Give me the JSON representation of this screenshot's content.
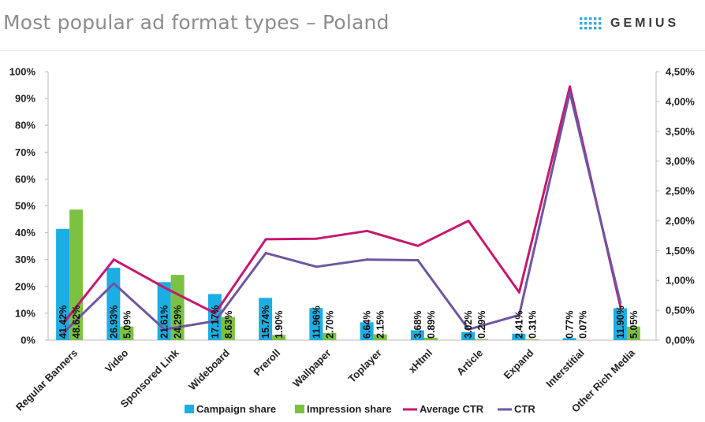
{
  "header": {
    "title": "Most popular ad format types – Poland",
    "logo_text": "GEMIUS"
  },
  "colors": {
    "campaign": "#1aaee3",
    "impression": "#7cc242",
    "avg_ctr": "#c6186f",
    "ctr": "#6f55a0",
    "logo_dots": "#35a8dc"
  },
  "chart_data": {
    "type": "bar",
    "title": "Most popular ad format types – Poland",
    "xlabel": "",
    "ylabel": "",
    "ylim": [
      0,
      100
    ],
    "y2lim": [
      0,
      4.5
    ],
    "y_ticks": [
      "0%",
      "10%",
      "20%",
      "30%",
      "40%",
      "50%",
      "60%",
      "70%",
      "80%",
      "90%",
      "100%"
    ],
    "y2_ticks": [
      "0,00%",
      "0,50%",
      "1,00%",
      "1,50%",
      "2,00%",
      "2,50%",
      "3,00%",
      "3,50%",
      "4,00%",
      "4,50%"
    ],
    "categories": [
      "Regular Banners",
      "Video",
      "Sponsored Link",
      "Wideboard",
      "Preroll",
      "Wallpaper",
      "Toplayer",
      "xHtml",
      "Article",
      "Expand",
      "Interstitial",
      "Other Rich Media"
    ],
    "series": [
      {
        "name": "Campaign share",
        "kind": "bar",
        "axis": "left",
        "values": [
          41.42,
          26.93,
          21.61,
          17.17,
          15.74,
          11.96,
          6.64,
          3.68,
          3.02,
          2.41,
          0.77,
          11.9
        ],
        "labels": [
          "41.42%",
          "26.93%",
          "21.61%",
          "17.17%",
          "15.74%",
          "11.96%",
          "6.64%",
          "3.68%",
          "3.02%",
          "2.41%",
          "0.77%",
          "11.90%"
        ]
      },
      {
        "name": "Impression share",
        "kind": "bar",
        "axis": "left",
        "values": [
          48.62,
          5.09,
          24.29,
          8.63,
          1.9,
          2.7,
          2.15,
          0.89,
          0.29,
          0.31,
          0.07,
          5.05
        ],
        "labels": [
          "48.62%",
          "5.09%",
          "24.29%",
          "8.63%",
          "1.90%",
          "2.70%",
          "2.15%",
          "0.89%",
          "0.29%",
          "0.31%",
          "0.07%",
          "5.05%"
        ]
      },
      {
        "name": "Average CTR",
        "kind": "line",
        "axis": "right",
        "values": [
          0.28,
          1.35,
          0.88,
          0.45,
          1.69,
          1.7,
          1.83,
          1.58,
          2.0,
          0.8,
          4.25,
          0.55
        ]
      },
      {
        "name": "CTR",
        "kind": "line",
        "axis": "right",
        "values": [
          0.12,
          0.95,
          0.18,
          0.32,
          1.46,
          1.23,
          1.35,
          1.34,
          0.18,
          0.42,
          4.15,
          0.62
        ]
      }
    ],
    "legend": [
      "Campaign share",
      "Impression share",
      "Average CTR",
      "CTR"
    ],
    "legend_position": "bottom"
  }
}
